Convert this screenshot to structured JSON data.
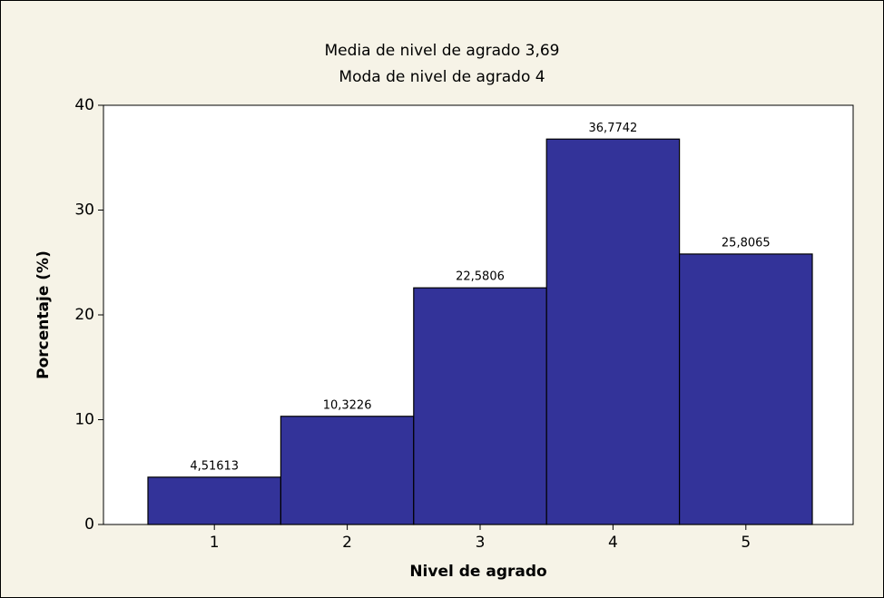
{
  "chart_data": {
    "type": "bar",
    "title": "Media de nivel de agrado 3,69",
    "subtitle": "Moda de nivel de agrado 4",
    "x_label": "Nivel de agrado",
    "y_label": "Porcentaje (%)",
    "categories": [
      "1",
      "2",
      "3",
      "4",
      "5"
    ],
    "values": [
      4.51613,
      10.3226,
      22.5806,
      36.7742,
      25.8065
    ],
    "value_labels": [
      "4,51613",
      "10,3226",
      "22,5806",
      "36,7742",
      "25,8065"
    ],
    "color": "#333399",
    "ylim": [
      0,
      40
    ],
    "yticks": [
      0,
      10,
      20,
      30,
      40
    ],
    "grid": false
  }
}
